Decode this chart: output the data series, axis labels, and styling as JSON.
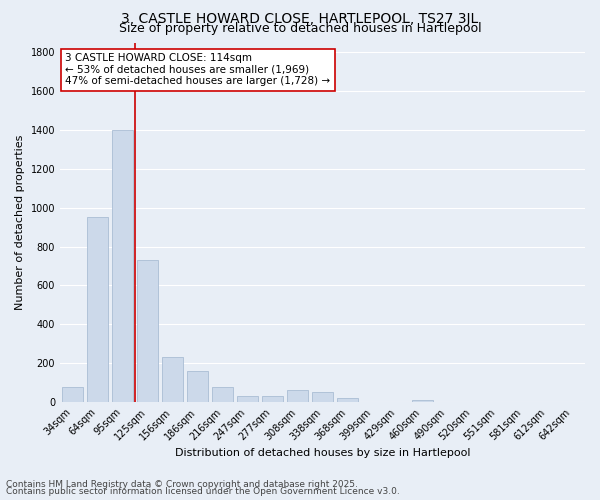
{
  "title1": "3, CASTLE HOWARD CLOSE, HARTLEPOOL, TS27 3JL",
  "title2": "Size of property relative to detached houses in Hartlepool",
  "xlabel": "Distribution of detached houses by size in Hartlepool",
  "ylabel": "Number of detached properties",
  "categories": [
    "34sqm",
    "64sqm",
    "95sqm",
    "125sqm",
    "156sqm",
    "186sqm",
    "216sqm",
    "247sqm",
    "277sqm",
    "308sqm",
    "338sqm",
    "368sqm",
    "399sqm",
    "429sqm",
    "460sqm",
    "490sqm",
    "520sqm",
    "551sqm",
    "581sqm",
    "612sqm",
    "642sqm"
  ],
  "values": [
    80,
    950,
    1400,
    730,
    230,
    160,
    80,
    30,
    30,
    60,
    50,
    20,
    0,
    0,
    12,
    0,
    0,
    0,
    0,
    0,
    0
  ],
  "bar_color": "#ccd9ea",
  "bar_edge_color": "#aabdd4",
  "vline_color": "#cc0000",
  "annotation_text": "3 CASTLE HOWARD CLOSE: 114sqm\n← 53% of detached houses are smaller (1,969)\n47% of semi-detached houses are larger (1,728) →",
  "annotation_box_color": "#ffffff",
  "annotation_box_edge": "#cc0000",
  "ylim": [
    0,
    1850
  ],
  "yticks": [
    0,
    200,
    400,
    600,
    800,
    1000,
    1200,
    1400,
    1600,
    1800
  ],
  "footer1": "Contains HM Land Registry data © Crown copyright and database right 2025.",
  "footer2": "Contains public sector information licensed under the Open Government Licence v3.0.",
  "bg_color": "#e8eef6",
  "plot_bg": "#e8eef6",
  "grid_color": "#ffffff",
  "title_fontsize": 10,
  "subtitle_fontsize": 9,
  "tick_fontsize": 7,
  "ylabel_fontsize": 8,
  "xlabel_fontsize": 8,
  "annot_fontsize": 7.5,
  "footer_fontsize": 6.5
}
